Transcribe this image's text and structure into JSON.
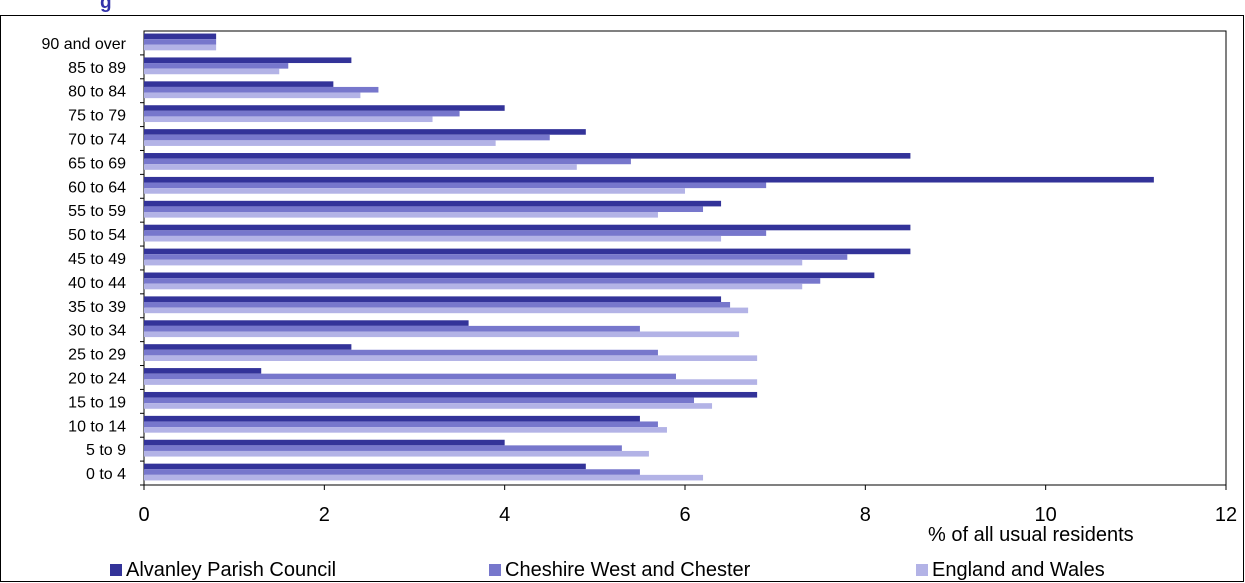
{
  "title_fragment": "g",
  "chart_data": {
    "type": "bar",
    "orientation": "horizontal",
    "categories": [
      "0 to 4",
      "5 to 9",
      "10 to 14",
      "15 to 19",
      "20 to 24",
      "25 to 29",
      "30 to 34",
      "35 to 39",
      "40 to 44",
      "45 to 49",
      "50 to 54",
      "55 to 59",
      "60 to 64",
      "65 to 69",
      "70 to 74",
      "75 to 79",
      "80 to 84",
      "85 to 89",
      "90 and over"
    ],
    "series": [
      {
        "name": "Alvanley Parish Council",
        "color": "#333399",
        "values": [
          4.9,
          4.0,
          5.5,
          6.8,
          1.3,
          2.3,
          3.6,
          6.4,
          8.1,
          8.5,
          8.5,
          6.4,
          11.2,
          8.5,
          4.9,
          4.0,
          2.1,
          2.3,
          0.8
        ]
      },
      {
        "name": "Cheshire West and Chester",
        "color": "#7777cc",
        "values": [
          5.5,
          5.3,
          5.7,
          6.1,
          5.9,
          5.7,
          5.5,
          6.5,
          7.5,
          7.8,
          6.9,
          6.2,
          6.9,
          5.4,
          4.5,
          3.5,
          2.6,
          1.6,
          0.8
        ]
      },
      {
        "name": "England and Wales",
        "color": "#b3b3e6",
        "values": [
          6.2,
          5.6,
          5.8,
          6.3,
          6.8,
          6.8,
          6.6,
          6.7,
          7.3,
          7.3,
          6.4,
          5.7,
          6.0,
          4.8,
          3.9,
          3.2,
          2.4,
          1.5,
          0.8
        ]
      }
    ],
    "xlabel": "% of all usual residents",
    "xlim": [
      0,
      12
    ],
    "xticks": [
      "0",
      "2",
      "4",
      "6",
      "8",
      "10",
      "12"
    ],
    "grid": false,
    "legend_position": "bottom"
  }
}
